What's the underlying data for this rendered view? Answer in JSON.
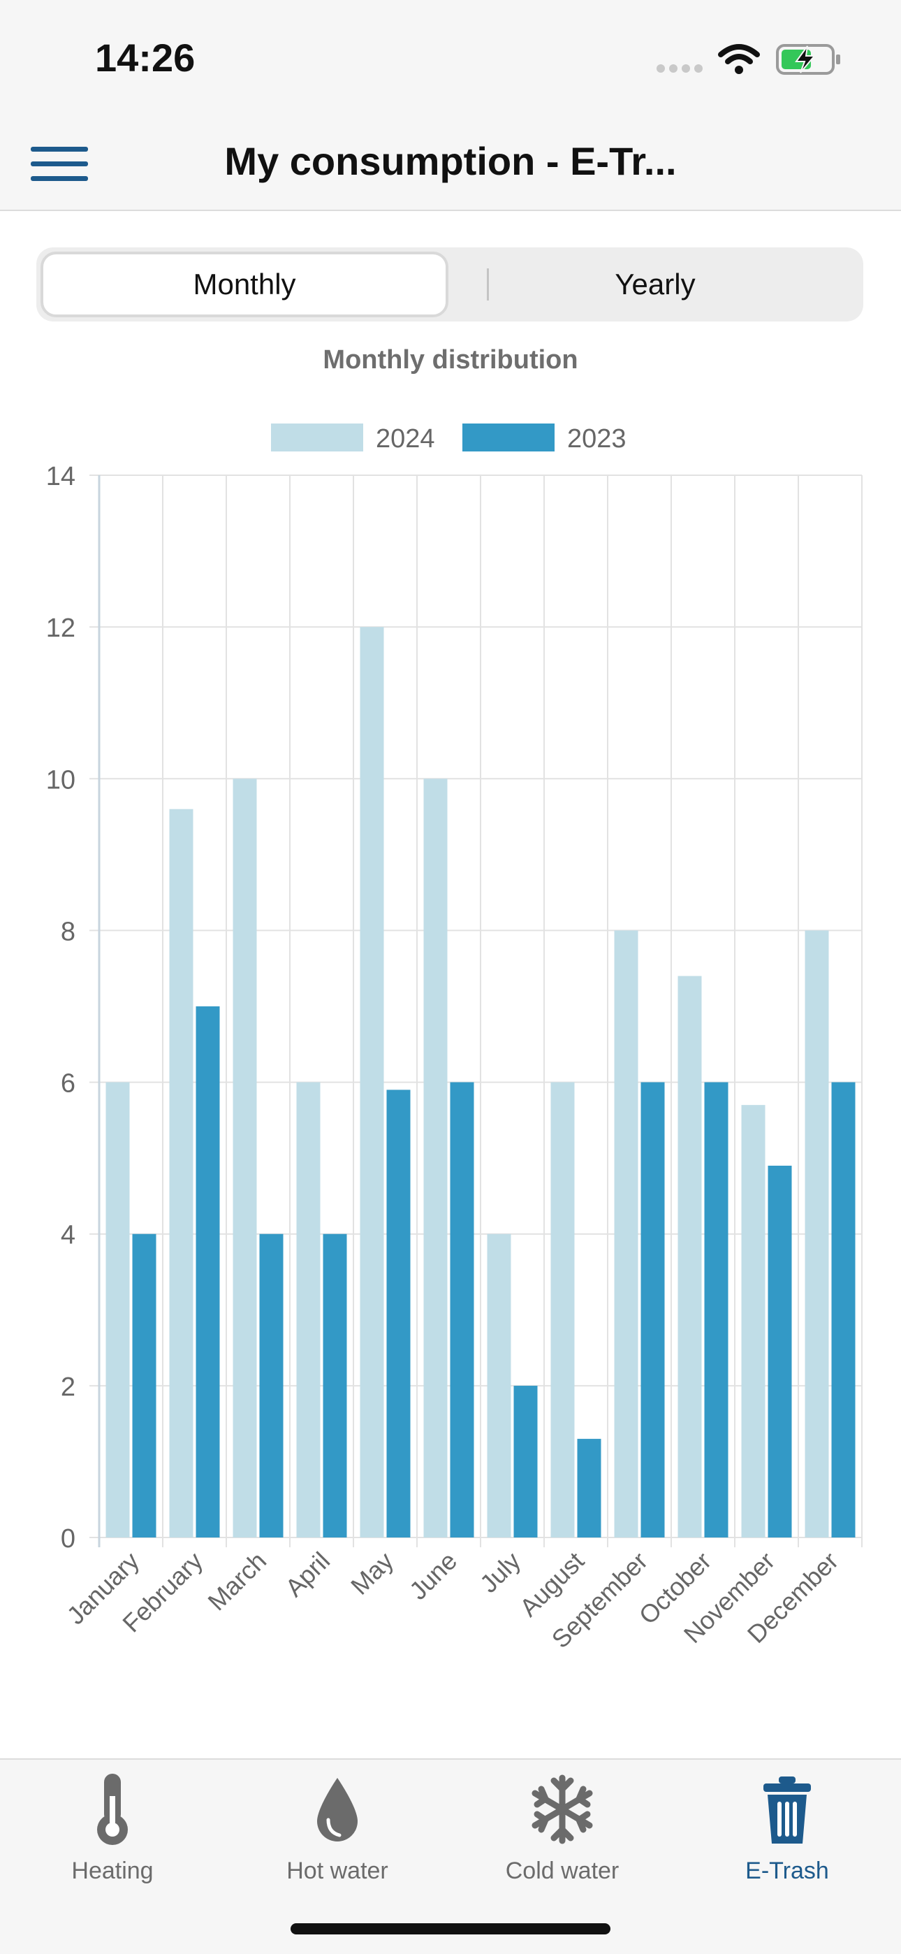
{
  "status_bar": {
    "time": "14:26",
    "icons": [
      "signal-dots-icon",
      "wifi-icon",
      "battery-charging-icon"
    ],
    "battery_color": "#34c759"
  },
  "nav": {
    "menu_icon": "hamburger-menu-icon",
    "title": "My consumption - E-Tr..."
  },
  "segmented": {
    "options": [
      "Monthly",
      "Yearly"
    ],
    "selected": "Monthly"
  },
  "chart_data": {
    "type": "bar",
    "title": "Monthly distribution",
    "categories": [
      "January",
      "February",
      "March",
      "April",
      "May",
      "June",
      "July",
      "August",
      "September",
      "October",
      "November",
      "December"
    ],
    "series": [
      {
        "name": "2024",
        "color": "#c0dde7",
        "values": [
          6,
          9.6,
          10,
          6,
          12,
          10,
          4,
          6,
          8,
          7.4,
          5.7,
          8
        ]
      },
      {
        "name": "2023",
        "color": "#3399c6",
        "values": [
          4,
          7,
          4,
          4,
          5.9,
          6,
          2,
          1.3,
          6,
          6,
          4.9,
          6
        ]
      }
    ],
    "ylim": [
      0,
      14
    ],
    "yticks": [
      0,
      2,
      4,
      6,
      8,
      10,
      12,
      14
    ],
    "grid": true,
    "legend": "top"
  },
  "tabs": [
    {
      "label": "Heating",
      "icon": "thermometer-icon"
    },
    {
      "label": "Hot water",
      "icon": "water-drop-icon"
    },
    {
      "label": "Cold water",
      "icon": "snowflake-icon"
    },
    {
      "label": "E-Trash",
      "icon": "trash-icon",
      "active": true
    }
  ],
  "colors": {
    "accent": "#1d5a8c",
    "tab_inactive": "#6b6b6b"
  }
}
